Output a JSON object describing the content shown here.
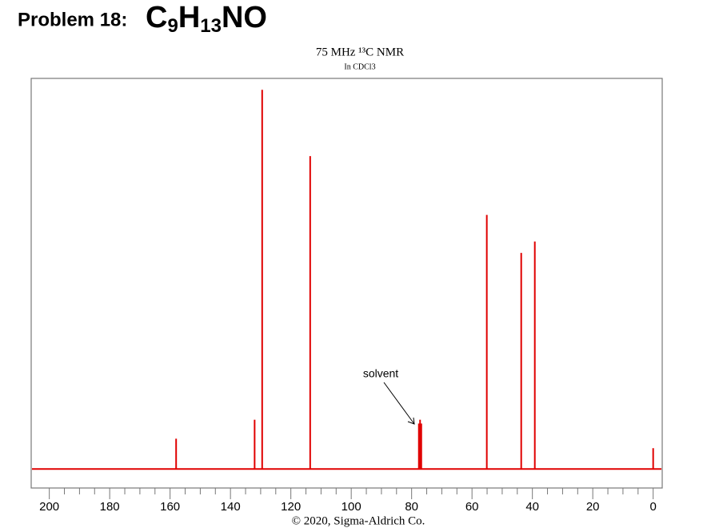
{
  "heading": {
    "label": "Problem 18:",
    "formula": [
      "C",
      "9",
      "H",
      "13",
      "NO"
    ]
  },
  "chart_data": {
    "type": "stick",
    "title": "75 MHz ¹³C NMR",
    "subtitle": "In CDCl3",
    "annotation": "solvent",
    "source": "© 2020, Sigma-Aldrich Co.",
    "x": [
      158,
      132,
      129.5,
      113.6,
      77.6,
      77.2,
      76.8,
      55.1,
      43.7,
      39.2,
      0
    ],
    "values": [
      8,
      13,
      100,
      82.5,
      12,
      13,
      12,
      67,
      57,
      60,
      5.5
    ],
    "color": "#e00000",
    "xlim": [
      206,
      -3
    ],
    "ylim": [
      -5,
      103
    ],
    "xticks": [
      200,
      180,
      160,
      140,
      120,
      100,
      80,
      60,
      40,
      20,
      0
    ],
    "xminor_ticks": [
      195,
      190,
      185,
      175,
      170,
      165,
      155,
      150,
      145,
      135,
      130,
      125,
      115,
      110,
      105,
      95,
      90,
      85,
      75,
      70,
      65,
      55,
      50,
      45,
      35,
      30,
      25,
      15,
      10,
      5
    ]
  }
}
